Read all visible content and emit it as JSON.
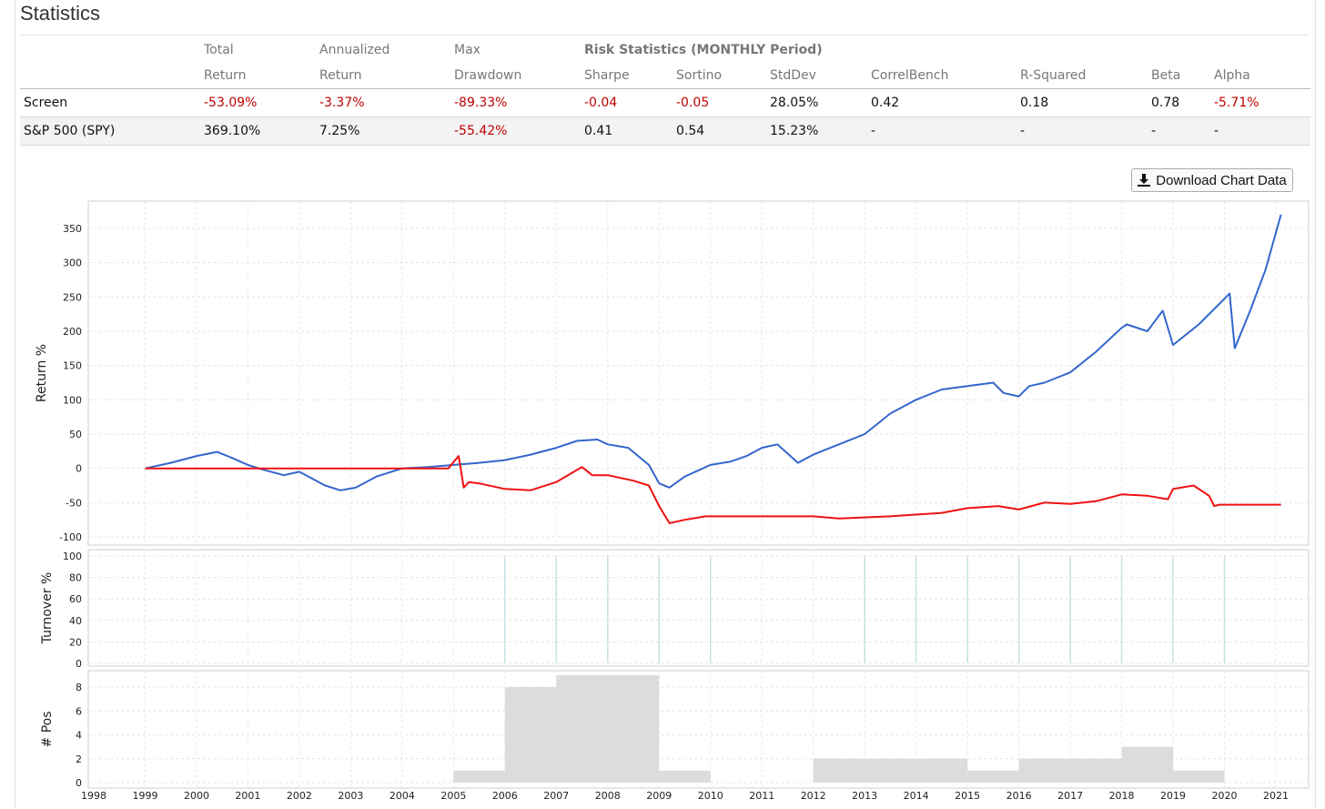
{
  "page": {
    "title": "Statistics",
    "download_label": "Download Chart Data",
    "download_icon": "download-icon"
  },
  "stats": {
    "header_top": [
      "",
      "Total",
      "Annualized",
      "Max",
      "Risk Statistics (MONTHLY Period)",
      "",
      "",
      "",
      "",
      "",
      ""
    ],
    "header_bottom": [
      "",
      "Return",
      "Return",
      "Drawdown",
      "Sharpe",
      "Sortino",
      "StdDev",
      "CorrelBench",
      "R-Squared",
      "Beta",
      "Alpha"
    ],
    "rows": [
      {
        "name": "Screen",
        "cells": [
          "-53.09%",
          "-3.37%",
          "-89.33%",
          "-0.04",
          "-0.05",
          "28.05%",
          "0.42",
          "0.18",
          "0.78",
          "-5.71%"
        ],
        "negative": [
          true,
          true,
          true,
          true,
          true,
          false,
          false,
          false,
          false,
          true
        ]
      },
      {
        "name": "S&P 500 (SPY)",
        "cells": [
          "369.10%",
          "7.25%",
          "-55.42%",
          "0.41",
          "0.54",
          "15.23%",
          "-",
          "-",
          "-",
          "-"
        ],
        "negative": [
          false,
          false,
          true,
          false,
          false,
          false,
          false,
          false,
          false,
          false
        ]
      }
    ]
  },
  "chart_data": [
    {
      "type": "line",
      "ylabel": "Return %",
      "ylim": [
        -100,
        370
      ],
      "yticks": [
        -100,
        -50,
        0,
        50,
        100,
        150,
        200,
        250,
        300,
        350
      ],
      "xlim": [
        1998,
        2021.4
      ],
      "grid": true,
      "colors": {
        "spy": "#3366cc",
        "screen": "#ee1111"
      },
      "series": [
        {
          "key": "spy",
          "x": [
            1999.0,
            1999.5,
            2000.0,
            2000.4,
            2000.7,
            2001.0,
            2001.3,
            2001.7,
            2002.0,
            2002.5,
            2002.8,
            2003.1,
            2003.5,
            2004.0,
            2004.5,
            2005.0,
            2005.5,
            2006.0,
            2006.5,
            2007.0,
            2007.4,
            2007.8,
            2008.0,
            2008.4,
            2008.8,
            2009.0,
            2009.2,
            2009.5,
            2010.0,
            2010.4,
            2010.7,
            2011.0,
            2011.3,
            2011.7,
            2012.0,
            2012.5,
            2013.0,
            2013.5,
            2014.0,
            2014.5,
            2015.0,
            2015.5,
            2015.7,
            2016.0,
            2016.2,
            2016.5,
            2017.0,
            2017.5,
            2018.0,
            2018.1,
            2018.5,
            2018.8,
            2019.0,
            2019.5,
            2019.9,
            2020.1,
            2020.2,
            2020.5,
            2020.8,
            2021.1
          ],
          "y": [
            0,
            8,
            18,
            24,
            15,
            5,
            -2,
            -10,
            -5,
            -25,
            -32,
            -28,
            -12,
            0,
            2,
            5,
            8,
            12,
            20,
            30,
            40,
            42,
            35,
            30,
            5,
            -22,
            -28,
            -12,
            5,
            10,
            18,
            30,
            35,
            8,
            20,
            35,
            50,
            80,
            100,
            115,
            120,
            125,
            110,
            105,
            120,
            125,
            140,
            170,
            205,
            210,
            200,
            230,
            180,
            210,
            240,
            255,
            175,
            230,
            290,
            370
          ]
        },
        {
          "key": "screen",
          "x": [
            1999.0,
            2004.9,
            2005.1,
            2005.2,
            2005.3,
            2005.5,
            2006.0,
            2006.5,
            2007.0,
            2007.5,
            2007.7,
            2008.0,
            2008.5,
            2008.8,
            2009.0,
            2009.2,
            2009.5,
            2009.9,
            2012.0,
            2012.5,
            2013.5,
            2014.5,
            2015.0,
            2015.6,
            2016.0,
            2016.5,
            2017.0,
            2017.5,
            2018.0,
            2018.5,
            2018.9,
            2019.0,
            2019.4,
            2019.7,
            2019.8,
            2019.9,
            2021.1
          ],
          "y": [
            0,
            0,
            18,
            -28,
            -20,
            -22,
            -30,
            -32,
            -20,
            2,
            -10,
            -10,
            -18,
            -25,
            -55,
            -80,
            -75,
            -70,
            -70,
            -73,
            -70,
            -65,
            -58,
            -55,
            -60,
            -50,
            -52,
            -48,
            -38,
            -40,
            -45,
            -30,
            -25,
            -40,
            -55,
            -53,
            -53
          ]
        }
      ]
    },
    {
      "type": "bar",
      "ylabel": "Turnover %",
      "ylim": [
        0,
        100
      ],
      "yticks": [
        0,
        20,
        40,
        60,
        80,
        100
      ],
      "x": [
        2006,
        2007,
        2008,
        2009,
        2010,
        2013,
        2014,
        2015,
        2016,
        2017,
        2018,
        2019,
        2020
      ],
      "values": [
        100,
        100,
        100,
        100,
        100,
        100,
        100,
        100,
        100,
        100,
        100,
        100,
        100
      ],
      "color": "#c8e0e4"
    },
    {
      "type": "area",
      "ylabel": "# Pos",
      "ylim": [
        0,
        9
      ],
      "yticks": [
        0,
        2,
        4,
        6,
        8
      ],
      "xlabel": "",
      "xticks": [
        1998,
        1999,
        2000,
        2001,
        2002,
        2003,
        2004,
        2005,
        2006,
        2007,
        2008,
        2009,
        2010,
        2011,
        2012,
        2013,
        2014,
        2015,
        2016,
        2017,
        2018,
        2019,
        2020,
        2021
      ],
      "steps": [
        {
          "from": 2005,
          "to": 2006,
          "value": 1
        },
        {
          "from": 2006,
          "to": 2007,
          "value": 8
        },
        {
          "from": 2007,
          "to": 2009,
          "value": 9
        },
        {
          "from": 2009,
          "to": 2010,
          "value": 1
        },
        {
          "from": 2012,
          "to": 2015,
          "value": 2
        },
        {
          "from": 2015,
          "to": 2016,
          "value": 1
        },
        {
          "from": 2016,
          "to": 2018,
          "value": 2
        },
        {
          "from": 2018,
          "to": 2019,
          "value": 3
        },
        {
          "from": 2019,
          "to": 2020,
          "value": 1
        }
      ],
      "color": "#dcdcdc"
    }
  ]
}
